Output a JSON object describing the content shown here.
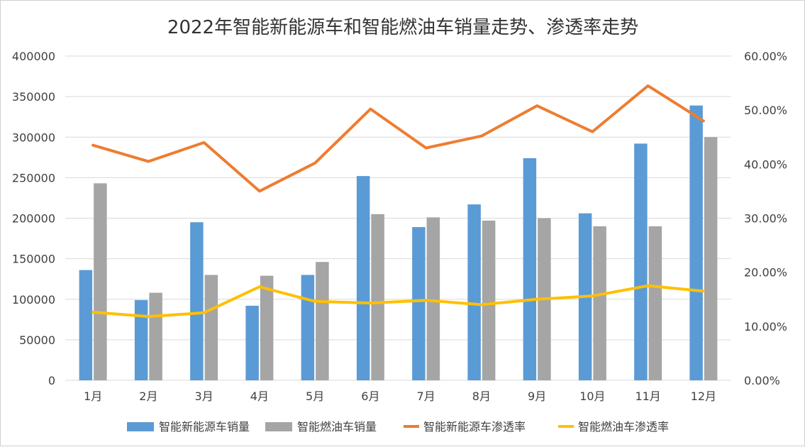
{
  "chart_data": {
    "type": "bar",
    "title": "2022年智能新能源车和智能燃油车销量走势、渗透率走势",
    "categories": [
      "1月",
      "2月",
      "3月",
      "4月",
      "5月",
      "6月",
      "7月",
      "8月",
      "9月",
      "10月",
      "11月",
      "12月"
    ],
    "y_left": {
      "min": 0,
      "max": 400000,
      "step": 50000,
      "tick_labels": [
        "0",
        "50000",
        "100000",
        "150000",
        "200000",
        "250000",
        "300000",
        "350000",
        "400000"
      ]
    },
    "y_right": {
      "min": 0,
      "max": 60,
      "step": 10,
      "tick_labels": [
        "0.00%",
        "10.00%",
        "20.00%",
        "30.00%",
        "40.00%",
        "50.00%",
        "60.00%"
      ]
    },
    "grid": true,
    "legend_position": "bottom",
    "series": [
      {
        "name": "智能新能源车销量",
        "type": "bar",
        "axis": "left",
        "color": "#5b9bd5",
        "values": [
          136000,
          99000,
          195000,
          92000,
          130000,
          252000,
          189000,
          217000,
          274000,
          206000,
          292000,
          339000
        ]
      },
      {
        "name": "智能燃油车销量",
        "type": "bar",
        "axis": "left",
        "color": "#a5a5a5",
        "values": [
          243000,
          108000,
          130000,
          129000,
          146000,
          205000,
          201000,
          197000,
          200000,
          190000,
          190000,
          300000
        ]
      },
      {
        "name": "智能新能源车渗透率",
        "type": "line",
        "axis": "right",
        "color": "#ed7d31",
        "values": [
          43.5,
          40.5,
          44.0,
          35.0,
          40.2,
          50.2,
          43.0,
          45.2,
          50.8,
          46.0,
          54.5,
          48.0
        ]
      },
      {
        "name": "智能燃油车渗透率",
        "type": "line",
        "axis": "right",
        "color": "#ffc000",
        "values": [
          12.6,
          11.8,
          12.5,
          17.3,
          14.6,
          14.3,
          14.8,
          14.0,
          15.0,
          15.6,
          17.5,
          16.5
        ]
      }
    ]
  }
}
